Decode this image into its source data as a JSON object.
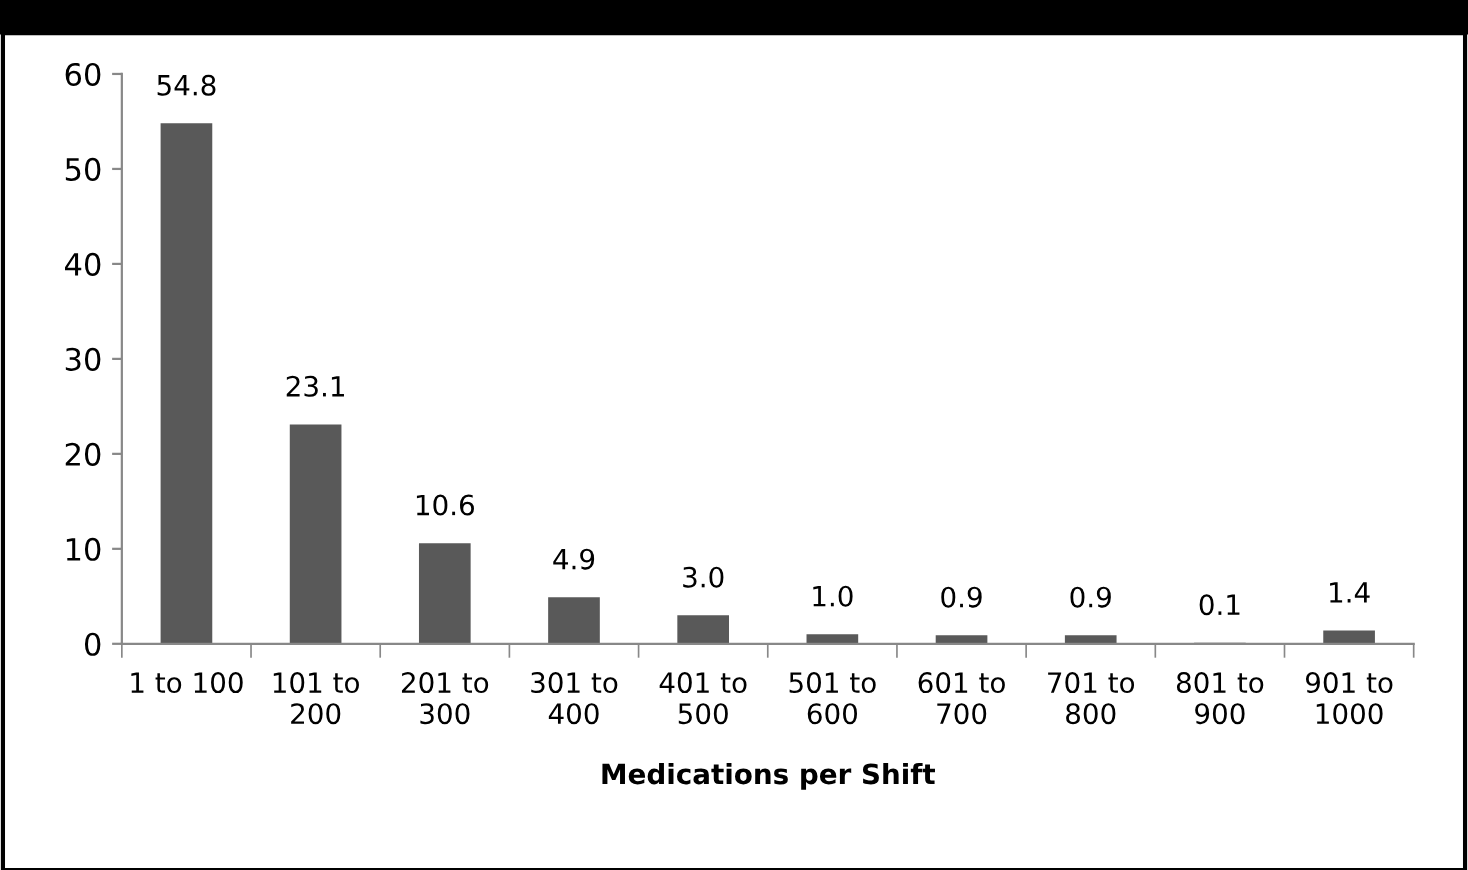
{
  "chart_data": {
    "type": "bar",
    "xlabel": "Medications per Shift",
    "categories": [
      "1 to 100",
      "101 to\n200",
      "201 to\n300",
      "301 to\n400",
      "401 to\n500",
      "501 to\n600",
      "601 to\n700",
      "701 to\n800",
      "801 to\n900",
      "901 to\n1000"
    ],
    "values": [
      54.8,
      23.1,
      10.6,
      4.9,
      3.0,
      1.0,
      0.9,
      0.9,
      0.1,
      1.4
    ],
    "value_labels": [
      "54.8",
      "23.1",
      "10.6",
      "4.9",
      "3.0",
      "1.0",
      "0.9",
      "0.9",
      "0.1",
      "1.4"
    ],
    "color": "#595959",
    "ylim": [
      0,
      60
    ],
    "yticks": [
      0,
      10,
      20,
      30,
      40,
      50,
      60
    ],
    "grid": false,
    "legend": false
  }
}
